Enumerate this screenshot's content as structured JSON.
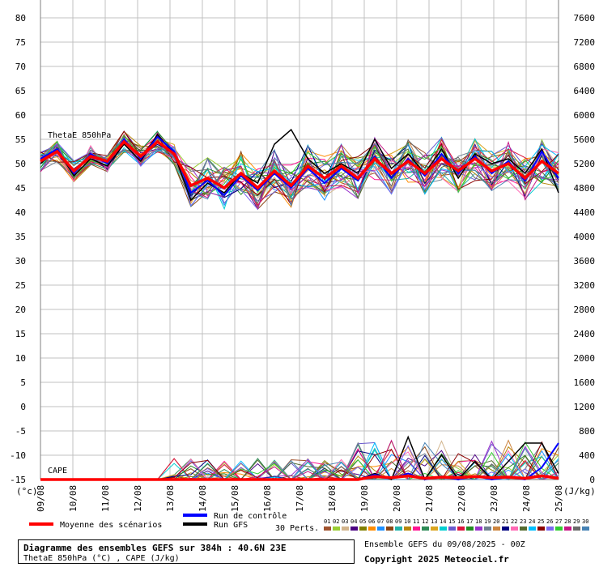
{
  "colors": {
    "background": "#ffffff",
    "grid": "#c0c0c0",
    "mean": "#ff0000",
    "control": "#0000ff",
    "gfs": "#000000",
    "perturbations": [
      "#a0522d",
      "#9acd32",
      "#d2b48c",
      "#4b0082",
      "#808000",
      "#ff8c00",
      "#1e90ff",
      "#8b4513",
      "#20b2aa",
      "#b8860b",
      "#ff1493",
      "#2e8b57",
      "#daa520",
      "#00ced1",
      "#6a5acd",
      "#dc143c",
      "#228b22",
      "#9932cc",
      "#708090",
      "#cd853f",
      "#000080",
      "#ff69b4",
      "#556b2f",
      "#00bfff",
      "#8b0000",
      "#7b68ee",
      "#32cd32",
      "#c71585",
      "#696969",
      "#4682b4"
    ]
  },
  "chart_data": {
    "type": "line",
    "left_axis": {
      "ticks": [
        "80",
        "75",
        "70",
        "65",
        "60",
        "55",
        "50",
        "45",
        "40",
        "35",
        "30",
        "25",
        "20",
        "15",
        "10",
        "5",
        "0",
        "-5",
        "-10",
        "-15"
      ],
      "unit": "(°c)",
      "range": [
        -15,
        80
      ]
    },
    "right_axis": {
      "ticks": [
        "7600",
        "7200",
        "6800",
        "6400",
        "6000",
        "5600",
        "5200",
        "4800",
        "4400",
        "4000",
        "3600",
        "3200",
        "2800",
        "2400",
        "2000",
        "1600",
        "1200",
        "800",
        "400",
        "0"
      ],
      "unit": "(J/kg)",
      "range": [
        0,
        7600
      ]
    },
    "x_labels": [
      "09/08",
      "10/08",
      "11/08",
      "12/08",
      "13/08",
      "14/08",
      "15/08",
      "16/08",
      "17/08",
      "18/08",
      "19/08",
      "20/08",
      "21/08",
      "22/08",
      "23/08",
      "24/08",
      "25/08"
    ],
    "theta_label": "ThetaE 850hPa",
    "cape_label": "CAPE",
    "theta_mean": [
      50.5,
      52.5,
      48.5,
      51.5,
      50.5,
      54.5,
      51.5,
      54.5,
      52,
      45.5,
      47,
      45,
      48,
      45,
      48.5,
      45.5,
      49.5,
      47,
      49.5,
      47,
      51,
      48,
      50.5,
      48,
      51,
      48.5,
      51,
      48.5,
      50,
      47,
      50.5,
      48
    ],
    "theta_control": [
      51,
      53,
      48,
      52,
      50,
      55,
      51,
      55.5,
      52.5,
      44,
      46.5,
      43.5,
      47.5,
      44.5,
      48,
      45,
      49,
      46,
      49,
      46.5,
      51.5,
      47,
      51,
      47.5,
      52,
      48,
      51.5,
      48,
      50.5,
      46.5,
      52.5,
      47
    ],
    "theta_gfs": [
      50,
      53,
      47.5,
      51,
      49.5,
      54,
      50.5,
      56,
      52,
      42.5,
      46,
      44,
      48,
      46,
      54,
      57,
      51,
      48,
      50,
      48,
      55,
      49,
      52,
      48,
      53,
      47,
      52,
      50,
      51,
      48,
      53,
      44
    ],
    "cape_mean": [
      0,
      0,
      0,
      0,
      0,
      0,
      0,
      0,
      0,
      0,
      0,
      0,
      0,
      0,
      0,
      0,
      0,
      0,
      0,
      0,
      50,
      30,
      60,
      20,
      40,
      30,
      50,
      30,
      40,
      20,
      60,
      20
    ],
    "cape_control": [
      0,
      0,
      0,
      0,
      0,
      0,
      0,
      0,
      0,
      0,
      0,
      0,
      0,
      0,
      0,
      0,
      0,
      0,
      0,
      0,
      80,
      20,
      100,
      0,
      50,
      0,
      60,
      0,
      40,
      0,
      200,
      600
    ],
    "cape_gfs": [
      0,
      0,
      0,
      0,
      0,
      0,
      0,
      0,
      0,
      0,
      0,
      0,
      0,
      0,
      0,
      0,
      0,
      0,
      0,
      0,
      100,
      0,
      700,
      0,
      400,
      0,
      300,
      0,
      300,
      600,
      600,
      100
    ]
  },
  "legend": {
    "mean": "Moyenne des scénarios",
    "control": "Run de contrôle",
    "gfs": "Run GFS",
    "perts": "30 Perts.",
    "pert_numbers": [
      "01",
      "02",
      "03",
      "04",
      "05",
      "06",
      "07",
      "08",
      "09",
      "10",
      "11",
      "12",
      "13",
      "14",
      "15",
      "16",
      "17",
      "18",
      "19",
      "20",
      "21",
      "22",
      "23",
      "24",
      "25",
      "26",
      "27",
      "28",
      "29",
      "30"
    ]
  },
  "footer": {
    "title": "Diagramme des ensembles GEFS sur 384h : 40.6N 23E",
    "subtitle": "ThetaE 850hPa (°C) , CAPE (J/kg)",
    "run_info": "Ensemble GEFS du 09/08/2025 - 00Z",
    "copyright": "Copyright 2025 Meteociel.fr"
  }
}
